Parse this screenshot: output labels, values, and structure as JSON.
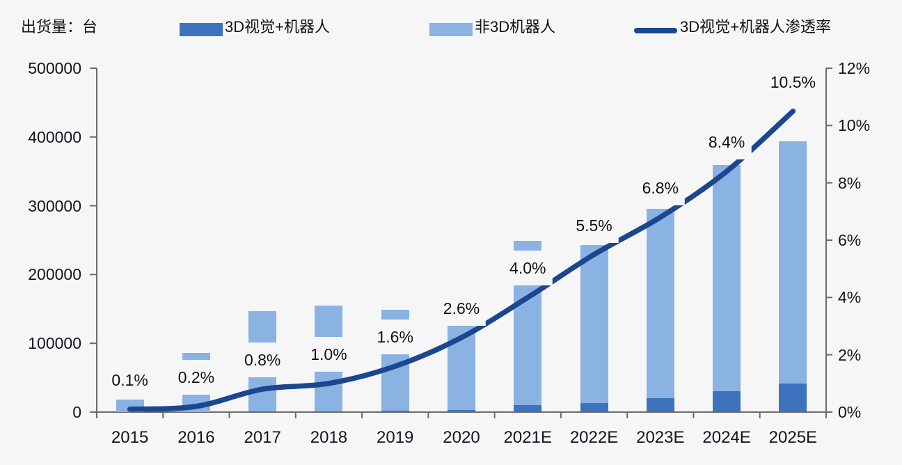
{
  "header": {
    "unit_label": "出货量：台",
    "legend": [
      {
        "label": "3D视觉+机器人",
        "type": "bar",
        "color": "#3d73bd"
      },
      {
        "label": "非3D机器人",
        "type": "bar",
        "color": "#8ab2e3"
      },
      {
        "label": "3D视觉+机器人渗透率",
        "type": "line",
        "color": "#1b4690"
      }
    ]
  },
  "chart_data": {
    "type": "bar+line",
    "title": "",
    "categories": [
      "2015",
      "2016",
      "2017",
      "2018",
      "2019",
      "2020",
      "2021E",
      "2022E",
      "2023E",
      "2024E",
      "2025E"
    ],
    "series": [
      {
        "name": "3D视觉+机器人",
        "type": "bar",
        "stack": "shipments",
        "axis": "left",
        "color": "#3d73bd",
        "values": [
          0,
          200,
          1200,
          1500,
          2400,
          3300,
          10000,
          13000,
          20000,
          30000,
          41000
        ]
      },
      {
        "name": "非3D机器人",
        "type": "bar",
        "stack": "shipments",
        "axis": "left",
        "color": "#8ab2e3",
        "values": [
          18000,
          85800,
          145800,
          153500,
          146600,
          122700,
          239000,
          230000,
          276000,
          329000,
          353000
        ]
      },
      {
        "name": "3D视觉+机器人渗透率",
        "type": "line",
        "axis": "right",
        "color": "#1b4690",
        "values": [
          0.1,
          0.2,
          0.8,
          1.0,
          1.6,
          2.6,
          4.0,
          5.5,
          6.8,
          8.4,
          10.5
        ],
        "point_labels": [
          "0.1%",
          "0.2%",
          "0.8%",
          "1.0%",
          "1.6%",
          "2.6%",
          "4.0%",
          "5.5%",
          "6.8%",
          "8.4%",
          "10.5%"
        ]
      }
    ],
    "left_axis": {
      "min": 0,
      "max": 500000,
      "step": 100000,
      "tick_labels": [
        "0",
        "100000",
        "200000",
        "300000",
        "400000",
        "500000"
      ]
    },
    "right_axis": {
      "min": 0,
      "max": 12,
      "step": 2,
      "tick_labels": [
        "0%",
        "2%",
        "4%",
        "6%",
        "8%",
        "10%",
        "12%"
      ]
    },
    "grid": false,
    "legend_position": "top"
  }
}
